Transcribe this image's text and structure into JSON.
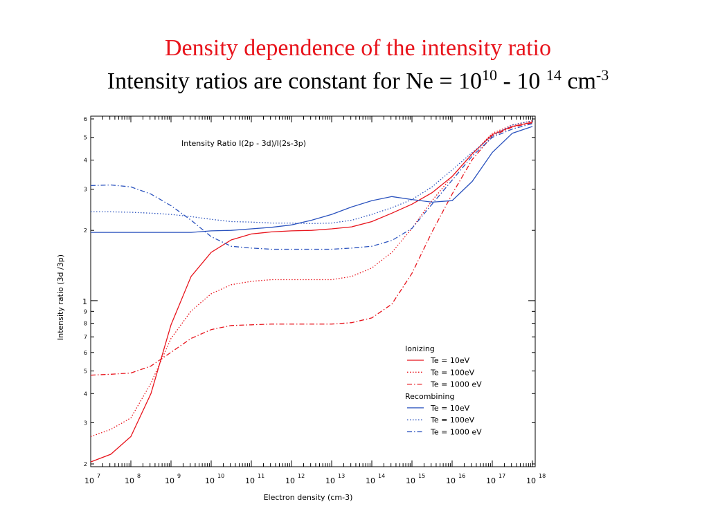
{
  "header": {
    "title": "Density dependence of the intensity ratio",
    "subtitle_parts": [
      "Intensity ratios are constant for Ne = 10",
      "10",
      " - 10 ",
      "14",
      " cm",
      "-3"
    ]
  },
  "chart_data": {
    "type": "line",
    "title": "Intensity Ratio I(2p - 3d)/I(2s-3p)",
    "xlabel": "Electron density (cm-3)",
    "ylabel": "Intensity ratio (3d /3p)",
    "xscale": "log",
    "yscale": "log",
    "xlim": [
      10000000.0,
      1e+18
    ],
    "ylim": [
      0.2,
      6
    ],
    "xticks": [
      {
        "value": 10000000.0,
        "label": "10",
        "superscript": "7"
      },
      {
        "value": 100000000.0,
        "label": "10",
        "superscript": "8"
      },
      {
        "value": 1000000000.0,
        "label": "10",
        "superscript": "9"
      },
      {
        "value": 10000000000.0,
        "label": "10",
        "superscript": "10"
      },
      {
        "value": 100000000000.0,
        "label": "10",
        "superscript": "11"
      },
      {
        "value": 1000000000000.0,
        "label": "10",
        "superscript": "12"
      },
      {
        "value": 10000000000000.0,
        "label": "10",
        "superscript": "13"
      },
      {
        "value": 100000000000000.0,
        "label": "10",
        "superscript": "14"
      },
      {
        "value": 1000000000000000.0,
        "label": "10",
        "superscript": "15"
      },
      {
        "value": 1e+16,
        "label": "10",
        "superscript": "16"
      },
      {
        "value": 1e+17,
        "label": "10",
        "superscript": "17"
      },
      {
        "value": 1e+18,
        "label": "10",
        "superscript": "18"
      }
    ],
    "yticks": [
      {
        "value": 0.2,
        "label": "2"
      },
      {
        "value": 0.3,
        "label": "3"
      },
      {
        "value": 0.4,
        "label": "4"
      },
      {
        "value": 0.5,
        "label": "5"
      },
      {
        "value": 0.6,
        "label": "6"
      },
      {
        "value": 0.7,
        "label": "7"
      },
      {
        "value": 0.8,
        "label": "8"
      },
      {
        "value": 0.9,
        "label": "9"
      },
      1,
      2,
      3,
      4,
      5,
      6
    ],
    "x": [
      10000000.0,
      31600000.0,
      100000000.0,
      316000000.0,
      1000000000.0,
      3160000000.0,
      10000000000.0,
      31600000000.0,
      100000000000.0,
      316000000000.0,
      1000000000000.0,
      3160000000000.0,
      10000000000000.0,
      31600000000000.0,
      100000000000000.0,
      316000000000000.0,
      1000000000000000.0,
      3160000000000000.0,
      1e+16,
      3.16e+16,
      1e+17,
      3.16e+17,
      1e+18
    ],
    "legend_titles": [
      "Ionizing",
      "Recombining"
    ],
    "series": [
      {
        "name": "Te = 10eV",
        "color": "#e8141c",
        "dash": "solid",
        "values": [
          0.204,
          0.22,
          0.262,
          0.4,
          0.788,
          1.27,
          1.61,
          1.82,
          1.93,
          1.97,
          1.99,
          2.0,
          2.03,
          2.07,
          2.18,
          2.37,
          2.59,
          2.9,
          3.4,
          4.25,
          5.14,
          5.57,
          5.81
        ]
      },
      {
        "name": "Te = 100eV",
        "color": "#e8141c",
        "dash": "dotted",
        "values": [
          0.262,
          0.281,
          0.315,
          0.443,
          0.689,
          0.903,
          1.07,
          1.17,
          1.21,
          1.23,
          1.23,
          1.23,
          1.23,
          1.27,
          1.38,
          1.61,
          2.04,
          2.68,
          3.4,
          4.25,
          5.21,
          5.65,
          5.89
        ]
      },
      {
        "name": "Te = 1000 eV",
        "color": "#e8141c",
        "dash": "dashdot",
        "values": [
          0.48,
          0.484,
          0.49,
          0.525,
          0.601,
          0.689,
          0.752,
          0.783,
          0.788,
          0.794,
          0.794,
          0.794,
          0.794,
          0.805,
          0.844,
          0.967,
          1.31,
          1.97,
          2.86,
          4.02,
          5.07,
          5.54,
          5.77
        ]
      },
      {
        "name": "Te = 10eV",
        "color": "#2a52be",
        "dash": "solid",
        "values": [
          1.96,
          1.96,
          1.96,
          1.96,
          1.96,
          1.96,
          1.99,
          2.0,
          2.03,
          2.06,
          2.11,
          2.21,
          2.34,
          2.52,
          2.68,
          2.79,
          2.71,
          2.64,
          2.68,
          3.24,
          4.31,
          5.21,
          5.57
        ]
      },
      {
        "name": "Te = 100eV",
        "color": "#2a52be",
        "dash": "dotted",
        "values": [
          2.4,
          2.4,
          2.39,
          2.37,
          2.34,
          2.29,
          2.23,
          2.18,
          2.17,
          2.15,
          2.15,
          2.14,
          2.15,
          2.21,
          2.34,
          2.5,
          2.71,
          3.07,
          3.63,
          4.31,
          5.07,
          5.65,
          5.89
        ]
      },
      {
        "name": "Te = 1000 eV",
        "color": "#2a52be",
        "dash": "dashdot",
        "values": [
          3.11,
          3.13,
          3.07,
          2.86,
          2.55,
          2.21,
          1.88,
          1.71,
          1.68,
          1.66,
          1.66,
          1.66,
          1.66,
          1.68,
          1.71,
          1.81,
          2.04,
          2.59,
          3.28,
          4.16,
          5.0,
          5.43,
          5.73
        ]
      }
    ]
  }
}
